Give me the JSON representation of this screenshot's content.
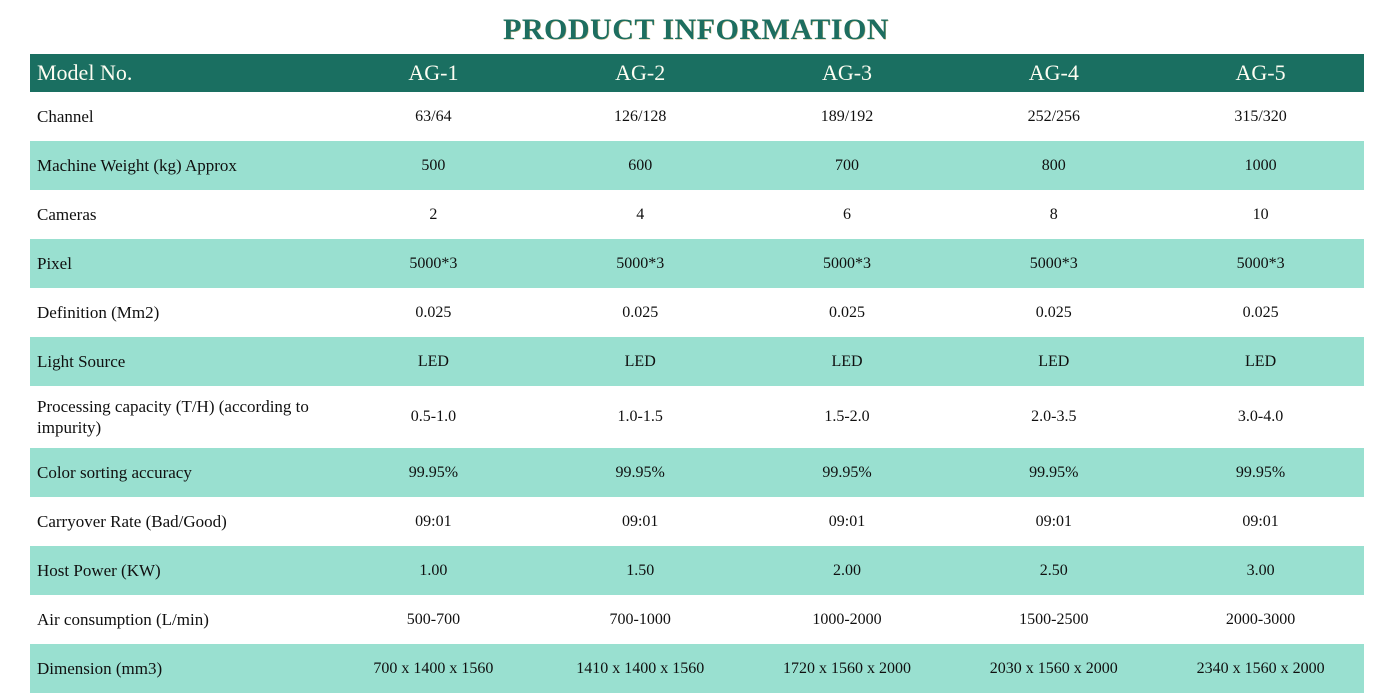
{
  "title": "PRODUCT INFORMATION",
  "colors": {
    "title_color": "#1d6e60",
    "header_bg": "#1a6f61",
    "header_text": "#fdfdf2",
    "stripe_bg": "#99e0d0",
    "body_text": "#101010",
    "page_bg": "#ffffff"
  },
  "table": {
    "columns": [
      "Model No.",
      "AG-1",
      "AG-2",
      "AG-3",
      "AG-4",
      "AG-5"
    ],
    "rows": [
      {
        "label": "Channel",
        "values": [
          "63/64",
          "126/128",
          "189/192",
          "252/256",
          "315/320"
        ]
      },
      {
        "label": "Machine Weight (kg) Approx",
        "values": [
          "500",
          "600",
          "700",
          "800",
          "1000"
        ]
      },
      {
        "label": "Cameras",
        "values": [
          "2",
          "4",
          "6",
          "8",
          "10"
        ]
      },
      {
        "label": "Pixel",
        "values": [
          "5000*3",
          "5000*3",
          "5000*3",
          "5000*3",
          "5000*3"
        ]
      },
      {
        "label": "Definition (Mm2)",
        "values": [
          "0.025",
          "0.025",
          "0.025",
          "0.025",
          "0.025"
        ]
      },
      {
        "label": "Light Source",
        "values": [
          "LED",
          "LED",
          "LED",
          "LED",
          "LED"
        ]
      },
      {
        "label": "Processing capacity (T/H) (according to impurity)",
        "values": [
          "0.5-1.0",
          "1.0-1.5",
          "1.5-2.0",
          "2.0-3.5",
          "3.0-4.0"
        ]
      },
      {
        "label": "Color sorting accuracy",
        "values": [
          "99.95%",
          "99.95%",
          "99.95%",
          "99.95%",
          "99.95%"
        ]
      },
      {
        "label": "Carryover Rate (Bad/Good)",
        "values": [
          "09:01",
          "09:01",
          "09:01",
          "09:01",
          "09:01"
        ]
      },
      {
        "label": "Host Power (KW)",
        "values": [
          "1.00",
          "1.50",
          "2.00",
          "2.50",
          "3.00"
        ]
      },
      {
        "label": "Air consumption (L/min)",
        "values": [
          "500-700",
          "700-1000",
          "1000-2000",
          "1500-2500",
          "2000-3000"
        ]
      },
      {
        "label": "Dimension (mm3)",
        "values": [
          "700 x 1400 x 1560",
          "1410 x 1400 x 1560",
          "1720 x 1560 x 2000",
          "2030 x 1560 x 2000",
          "2340 x 1560 x 2000"
        ]
      }
    ]
  }
}
